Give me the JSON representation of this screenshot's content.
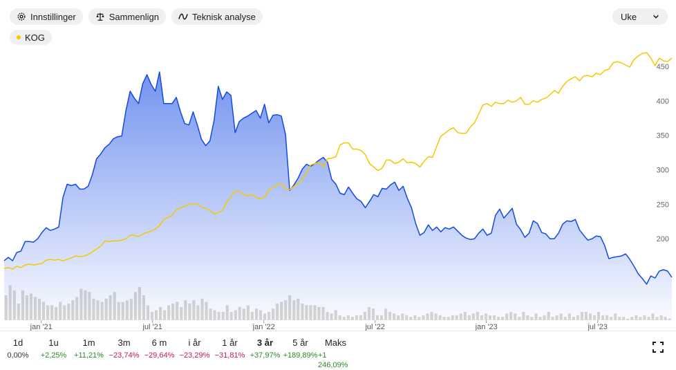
{
  "toolbar": {
    "settings_label": "Innstillinger",
    "compare_label": "Sammenlign",
    "technical_label": "Teknisk analyse"
  },
  "period_select": {
    "value": "Uke"
  },
  "legend": {
    "name": "KOG",
    "color": "#f5c800"
  },
  "ranges": [
    {
      "label": "1d",
      "change": "0,00%",
      "tone": "neutral",
      "active": false
    },
    {
      "label": "1u",
      "change": "+2,25%",
      "tone": "pos",
      "active": false
    },
    {
      "label": "1m",
      "change": "+11,21%",
      "tone": "pos",
      "active": false
    },
    {
      "label": "3m",
      "change": "−23,74%",
      "tone": "neg",
      "active": false
    },
    {
      "label": "6 m",
      "change": "−29,64%",
      "tone": "neg",
      "active": false
    },
    {
      "label": "i år",
      "change": "−23,29%",
      "tone": "neg",
      "active": false
    },
    {
      "label": "1 år",
      "change": "−31,81%",
      "tone": "neg",
      "active": false
    },
    {
      "label": "3 år",
      "change": "+37,97%",
      "tone": "pos",
      "active": true
    },
    {
      "label": "5 år",
      "change": "+189,89%",
      "tone": "pos",
      "active": false
    },
    {
      "label": "Maks",
      "change": "+1 246,09%",
      "tone": "pos",
      "active": false
    }
  ],
  "chart_data": {
    "type": "line",
    "x_ticks": [
      "jan '21",
      "jul '21",
      "jan '22",
      "jul '22",
      "jan '23",
      "jul '23"
    ],
    "x_tick_positions": [
      0.1667,
      0.6667,
      1.1667,
      1.6667,
      2.1667,
      2.6667
    ],
    "ylim": [
      0,
      480
    ],
    "y_ticks": [
      200,
      250,
      300,
      350,
      400,
      450
    ],
    "x_range": [
      0,
      3.0
    ],
    "grid": false,
    "series": [
      {
        "color": "#1448e0",
        "area": true,
        "values": [
          168,
          173,
          168,
          180,
          182,
          196,
          196,
          195,
          200,
          209,
          216,
          212,
          214,
          217,
          260,
          279,
          277,
          279,
          272,
          272,
          276,
          293,
          316,
          323,
          332,
          337,
          345,
          348,
          349,
          386,
          414,
          404,
          396,
          425,
          438,
          424,
          414,
          442,
          396,
          396,
          396,
          405,
          384,
          367,
          365,
          384,
          365,
          344,
          335,
          342,
          372,
          421,
          402,
          413,
          408,
          354,
          370,
          375,
          378,
          382,
          386,
          375,
          395,
          368,
          379,
          380,
          378,
          351,
          270,
          278,
          288,
          301,
          308,
          305,
          309,
          314,
          318,
          311,
          286,
          279,
          266,
          264,
          275,
          266,
          258,
          254,
          245,
          254,
          264,
          261,
          273,
          272,
          278,
          282,
          270,
          276,
          259,
          245,
          222,
          205,
          209,
          220,
          212,
          217,
          210,
          216,
          214,
          217,
          211,
          205,
          201,
          199,
          200,
          208,
          214,
          205,
          208,
          234,
          243,
          230,
          237,
          244,
          221,
          213,
          202,
          208,
          226,
          222,
          209,
          207,
          200,
          200,
          208,
          221,
          226,
          225,
          228,
          213,
          205,
          198,
          200,
          204,
          203,
          190,
          171,
          173,
          174,
          175,
          178,
          170,
          160,
          149,
          142,
          134,
          146,
          143,
          153,
          155,
          153,
          144
        ]
      },
      {
        "color": "#f5c800",
        "area": false,
        "values": [
          157,
          158,
          156,
          160,
          158,
          162,
          163,
          162,
          163,
          164,
          169,
          170,
          169,
          170,
          168,
          170,
          172,
          175,
          174,
          175,
          177,
          181,
          185,
          189,
          197,
          196,
          197,
          197,
          198,
          200,
          205,
          205,
          203,
          207,
          209,
          211,
          214,
          219,
          228,
          231,
          234,
          242,
          245,
          247,
          250,
          251,
          250,
          246,
          244,
          241,
          236,
          238,
          241,
          253,
          261,
          270,
          268,
          264,
          262,
          264,
          260,
          258,
          260,
          271,
          274,
          278,
          280,
          273,
          271,
          276,
          280,
          286,
          296,
          307,
          309,
          311,
          304,
          316,
          317,
          319,
          336,
          339,
          339,
          330,
          330,
          328,
          322,
          309,
          304,
          299,
          302,
          314,
          314,
          309,
          311,
          316,
          310,
          311,
          309,
          304,
          312,
          319,
          318,
          334,
          349,
          353,
          358,
          361,
          354,
          353,
          353,
          362,
          368,
          381,
          394,
          396,
          392,
          398,
          396,
          396,
          401,
          398,
          400,
          405,
          395,
          395,
          400,
          398,
          402,
          404,
          409,
          415,
          411,
          421,
          428,
          432,
          435,
          429,
          436,
          437,
          435,
          440,
          438,
          444,
          446,
          455,
          457,
          455,
          452,
          449,
          460,
          465,
          469,
          470,
          462,
          451,
          462,
          458,
          457,
          462
        ]
      }
    ],
    "volume": [
      15,
      21,
      18,
      10,
      18,
      15,
      16,
      14,
      13,
      11,
      9,
      9,
      8,
      11,
      9,
      10,
      12,
      14,
      19,
      18,
      17,
      13,
      12,
      11,
      13,
      15,
      17,
      11,
      11,
      12,
      13,
      17,
      20,
      15,
      9,
      5,
      6,
      8,
      6,
      9,
      10,
      11,
      8,
      12,
      10,
      12,
      9,
      13,
      11,
      7,
      6,
      5,
      5,
      9,
      5,
      6,
      8,
      7,
      9,
      5,
      7,
      6,
      4,
      5,
      7,
      10,
      11,
      12,
      15,
      12,
      13,
      10,
      9,
      9,
      9,
      8,
      8,
      5,
      4,
      6,
      3,
      2,
      3,
      2,
      3,
      3,
      5,
      8,
      7,
      3,
      3,
      7,
      5,
      4,
      3,
      4,
      3,
      2,
      3,
      2,
      3,
      4,
      5,
      4,
      3,
      2,
      2,
      3,
      3,
      4,
      5,
      3,
      4,
      5,
      3,
      4,
      3,
      3,
      2,
      2,
      4,
      5,
      4,
      2,
      5,
      3,
      2,
      4,
      2,
      3,
      5,
      2,
      3,
      4,
      2,
      4,
      2,
      3,
      5,
      5,
      4,
      3,
      5,
      3,
      3,
      2,
      4,
      2,
      2,
      1,
      2,
      3,
      2,
      3,
      2,
      4,
      2,
      3,
      2,
      1
    ]
  }
}
